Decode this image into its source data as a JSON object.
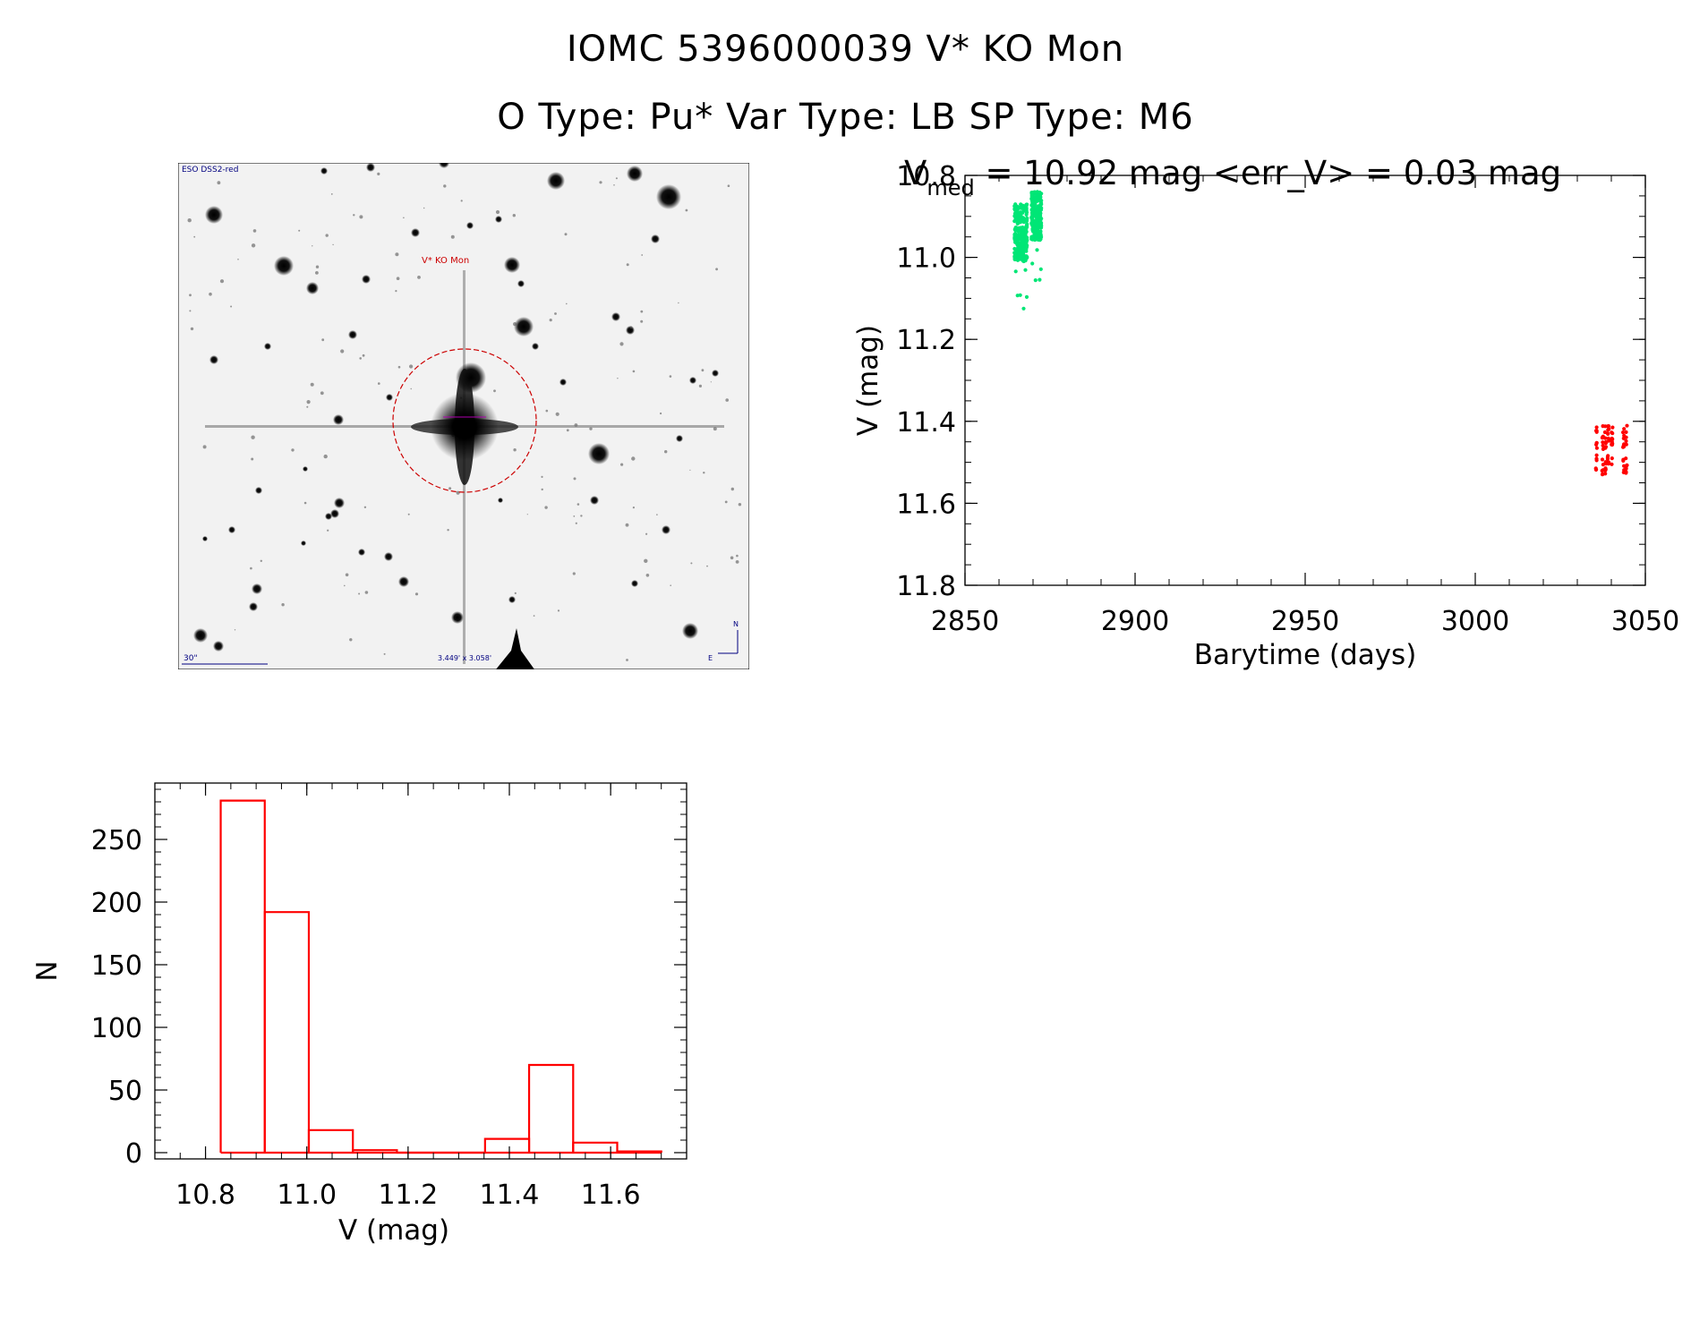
{
  "header": {
    "title": "IOMC 5396000039    V* KO Mon",
    "subtitle": "O Type: Pu*  Var Type: LB  SP Type: M6"
  },
  "image_panel": {
    "survey_label": "ESO DSS2-red",
    "target_label": "V* KO Mon",
    "scale_label": "30\"",
    "fov_label": "3.449' x 3.058'",
    "north_label": "N",
    "east_label": "E"
  },
  "colors": {
    "green_points": "#00e676",
    "red_points": "#ff0000",
    "histogram": "#ff0000",
    "marker_circle": "#cc0000"
  },
  "chart_data": [
    {
      "type": "scatter",
      "title_prefix": "V",
      "title_subscript": "med",
      "title_rest": " = 10.92 mag <err_V> = 0.03 mag",
      "xlabel": "Barytime (days)",
      "ylabel": "V (mag)",
      "xlim": [
        2850,
        3050
      ],
      "ylim": [
        11.8,
        10.8
      ],
      "y_inverted": true,
      "xticks": [
        2850,
        2900,
        2950,
        3000,
        3050
      ],
      "yticks": [
        "10.8",
        "11.0",
        "11.2",
        "11.4",
        "11.6",
        "11.8"
      ],
      "series": [
        {
          "color": "green",
          "x_range": [
            2864.5,
            2872.5
          ],
          "y_range": [
            10.84,
            11.13
          ],
          "approx_points": 480
        },
        {
          "color": "red",
          "x_range": [
            3035,
            3045
          ],
          "y_range": [
            11.38,
            11.6
          ],
          "approx_points": 95
        }
      ]
    },
    {
      "type": "bar",
      "subtype": "histogram",
      "xlabel": "V (mag)",
      "ylabel": "N",
      "xlim": [
        10.7,
        11.75
      ],
      "ylim": [
        0,
        295
      ],
      "xticks": [
        "10.8",
        "11.0",
        "11.2",
        "11.4",
        "11.6"
      ],
      "yticks": [
        "0",
        "50",
        "100",
        "150",
        "200",
        "250"
      ],
      "bin_edges": [
        10.83,
        10.917,
        11.004,
        11.091,
        11.178,
        11.265,
        11.352,
        11.439,
        11.526,
        11.613,
        11.7
      ],
      "values": [
        281,
        192,
        18,
        2,
        0,
        0,
        11,
        70,
        8,
        1
      ]
    }
  ]
}
